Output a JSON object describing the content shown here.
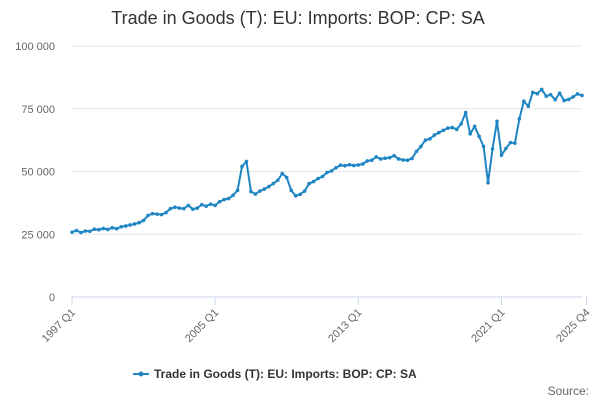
{
  "chart_data": {
    "type": "line",
    "title": "Trade in Goods (T): EU: Imports: BOP: CP: SA",
    "source_label": "Source:",
    "series": [
      {
        "name": "Trade in Goods (T): EU: Imports: BOP: CP: SA",
        "color": "#1f86c3",
        "start": "1997 Q1",
        "values": [
          25800,
          26500,
          25700,
          26300,
          26200,
          27000,
          26800,
          27300,
          26900,
          27600,
          27200,
          28000,
          28300,
          28700,
          29100,
          29600,
          30500,
          32500,
          33200,
          33000,
          32800,
          33600,
          35200,
          35800,
          35400,
          35200,
          36500,
          35000,
          35400,
          36800,
          36200,
          37000,
          36500,
          38000,
          38800,
          39200,
          40500,
          42500,
          52000,
          54000,
          42000,
          41000,
          42200,
          43000,
          44000,
          45200,
          46500,
          49200,
          47600,
          42500,
          40300,
          40900,
          42200,
          45200,
          46000,
          47200,
          48000,
          49600,
          50200,
          51500,
          52500,
          52300,
          52700,
          52400,
          52600,
          53000,
          54200,
          54500,
          55800,
          55000,
          55300,
          55500,
          56300,
          55000,
          54600,
          54500,
          55200,
          58000,
          60000,
          62500,
          63000,
          64500,
          65500,
          66400,
          67300,
          67500,
          66800,
          69000,
          73500,
          65000,
          68000,
          64000,
          60000,
          45500,
          59000,
          70000,
          56500,
          59200,
          61500,
          61300,
          71000,
          78000,
          76000,
          81500,
          81000,
          82700,
          80000,
          80600,
          78600,
          81200,
          78300,
          78700,
          79700,
          80900,
          80300
        ]
      }
    ],
    "x_tick_labels": [
      "1997 Q1",
      "2005 Q1",
      "2013 Q1",
      "2021 Q1",
      "2025 Q4"
    ],
    "y_ticks": [
      0,
      25000,
      50000,
      75000,
      100000
    ],
    "y_tick_labels": [
      "0",
      "25 000",
      "50 000",
      "75 000",
      "100 000"
    ],
    "ylim": [
      0,
      100000
    ],
    "grid": "horizontal",
    "legend_position": "bottom"
  }
}
